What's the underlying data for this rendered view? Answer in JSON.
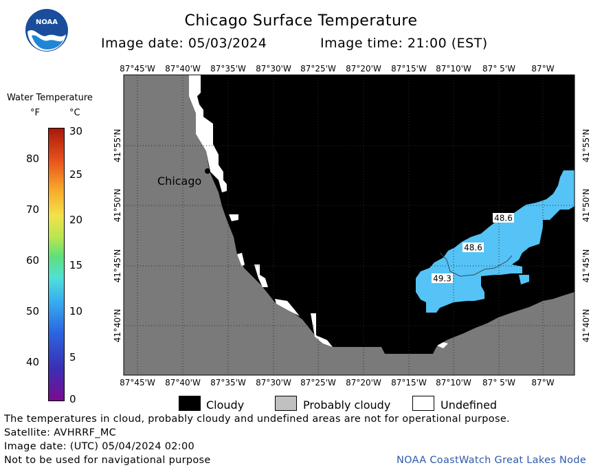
{
  "title": "Chicago Surface Temperature",
  "image_date": "Image date: 05/03/2024",
  "image_time": "Image time: 21:00 (EST)",
  "logo": {
    "icon": "noaa-logo-icon",
    "text": "NOAA"
  },
  "legend": {
    "title": "Water Temperature",
    "unit_f": "°F",
    "unit_c": "°C",
    "f_ticks": [
      "80",
      "70",
      "60",
      "50",
      "40"
    ],
    "c_ticks": [
      "30",
      "25",
      "20",
      "15",
      "10",
      "5",
      "0"
    ]
  },
  "map": {
    "lon_labels": [
      "87°45'W",
      "87°40'W",
      "87°35'W",
      "87°30'W",
      "87°25'W",
      "87°20'W",
      "87°15'W",
      "87°10'W",
      "87° 5'W",
      "87°W"
    ],
    "lat_labels": [
      "41°55'N",
      "41°50'N",
      "41°45'N",
      "41°40'N"
    ],
    "city_label": "Chicago",
    "temperature_labels": [
      "48.6",
      "48.6",
      "49.3"
    ],
    "colors": {
      "land": "#7a7a7a",
      "cloud": "#000000",
      "probably_cloudy": "#c0c0c0",
      "undefined": "#ffffff",
      "water_temp": "#55c3f5"
    }
  },
  "map_legend": {
    "cloudy": "Cloudy",
    "probably_cloudy": "Probably cloudy",
    "undefined": "Undefined"
  },
  "footer": {
    "line1": "The temperatures in cloud, probably cloudy and undefined areas are not for operational purpose.",
    "line2": "Satellite: AVHRRF_MC",
    "line3": "Image date: (UTC) 05/04/2024  02:00",
    "line4": "Not to be used for navigational purpose",
    "node": "NOAA CoastWatch Great Lakes Node"
  }
}
